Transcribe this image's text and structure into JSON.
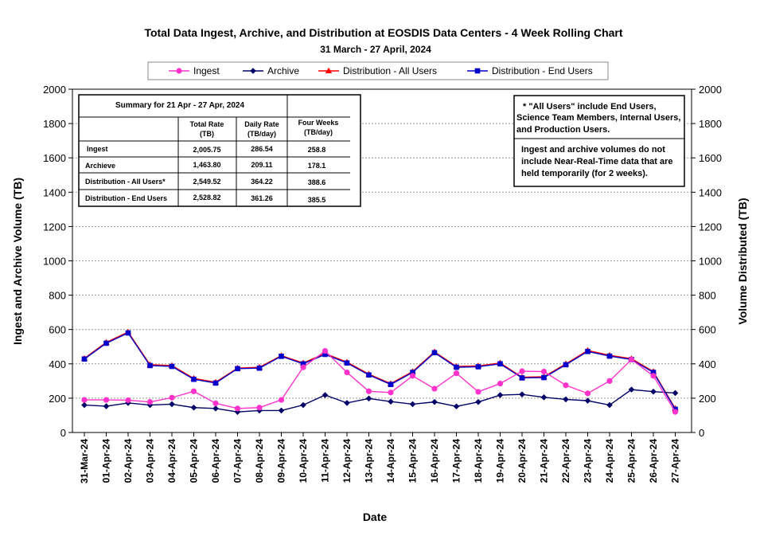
{
  "chart_data": {
    "type": "line",
    "title": "Total Data Ingest, Archive, and  Distribution at EOSDIS Data Centers - 4 Week Rolling Chart",
    "subtitle": "31 March  - 27 April, 2024",
    "xlabel": "Date",
    "ylabel": "Ingest and Archive Volume (TB)",
    "y2label": "Volume Distributed (TB)",
    "ylim": [
      0,
      2000
    ],
    "y2lim": [
      0,
      2000
    ],
    "yticks": [
      "0",
      "200",
      "400",
      "600",
      "800",
      "1000",
      "1200",
      "1400",
      "1600",
      "1800",
      "2000"
    ],
    "grid": "horizontal dashed",
    "legend_position": "top",
    "categories": [
      "31-Mar-24",
      "01-Apr-24",
      "02-Apr-24",
      "03-Apr-24",
      "04-Apr-24",
      "05-Apr-24",
      "06-Apr-24",
      "07-Apr-24",
      "08-Apr-24",
      "09-Apr-24",
      "10-Apr-24",
      "11-Apr-24",
      "12-Apr-24",
      "13-Apr-24",
      "14-Apr-24",
      "15-Apr-24",
      "16-Apr-24",
      "17-Apr-24",
      "18-Apr-24",
      "19-Apr-24",
      "20-Apr-24",
      "21-Apr-24",
      "22-Apr-24",
      "23-Apr-24",
      "24-Apr-24",
      "25-Apr-24",
      "26-Apr-24",
      "27-Apr-24"
    ],
    "series": [
      {
        "name": "Ingest",
        "color": "#ff33cc",
        "marker": "circle",
        "axis": "left",
        "values": [
          190,
          190,
          188,
          178,
          203,
          240,
          170,
          140,
          145,
          190,
          380,
          475,
          350,
          240,
          233,
          330,
          255,
          345,
          237,
          285,
          357,
          355,
          275,
          228,
          300,
          425,
          330,
          120
        ]
      },
      {
        "name": "Archive",
        "color": "#000066",
        "marker": "diamond",
        "axis": "left",
        "values": [
          160,
          153,
          172,
          160,
          165,
          145,
          140,
          120,
          128,
          128,
          160,
          218,
          172,
          198,
          180,
          165,
          178,
          152,
          178,
          218,
          222,
          205,
          193,
          185,
          160,
          250,
          238,
          230
        ]
      },
      {
        "name": "Distribution - All Users",
        "color": "#ff0000",
        "marker": "triangle",
        "axis": "right",
        "values": [
          432,
          525,
          585,
          395,
          390,
          315,
          293,
          375,
          380,
          448,
          405,
          460,
          410,
          340,
          285,
          355,
          470,
          385,
          388,
          405,
          322,
          325,
          400,
          478,
          450,
          430,
          355,
          140
        ]
      },
      {
        "name": "Distribution - End Users",
        "color": "#0000cc",
        "marker": "square",
        "axis": "right",
        "values": [
          428,
          520,
          580,
          390,
          385,
          310,
          288,
          372,
          375,
          444,
          400,
          455,
          405,
          335,
          280,
          350,
          465,
          380,
          383,
          400,
          318,
          320,
          395,
          472,
          445,
          425,
          350,
          135
        ]
      }
    ]
  },
  "summary": {
    "title": "Summary  for  21 Apr  - 27 Apr, 2024",
    "headers": [
      [
        "Total Rate",
        "(TB)"
      ],
      [
        "Daily Rate",
        "(TB/day)"
      ],
      [
        "Four Weeks",
        "(TB/day)"
      ]
    ],
    "rows": [
      {
        "label": "Ingest",
        "total": "2,005.75",
        "daily": "286.54",
        "four": "258.8"
      },
      {
        "label": "Archieve",
        "total": "1,463.80",
        "daily": "209.11",
        "four": "178.1"
      },
      {
        "label": "Distribution - All Users*",
        "total": "2,549.52",
        "daily": "364.22",
        "four": "388.6"
      },
      {
        "label": "Distribution - End Users",
        "total": "2,528.82",
        "daily": "361.26",
        "four": "385.5"
      }
    ]
  },
  "notes": {
    "note1": [
      "* \"All Users\" include End Users,",
      "Science Team Members,  Internal Users,",
      "and Production Users."
    ],
    "note2": [
      "Ingest and archive volumes do not",
      "include Near-Real-Time data that are",
      "held temporarily (for 2 weeks)."
    ]
  }
}
